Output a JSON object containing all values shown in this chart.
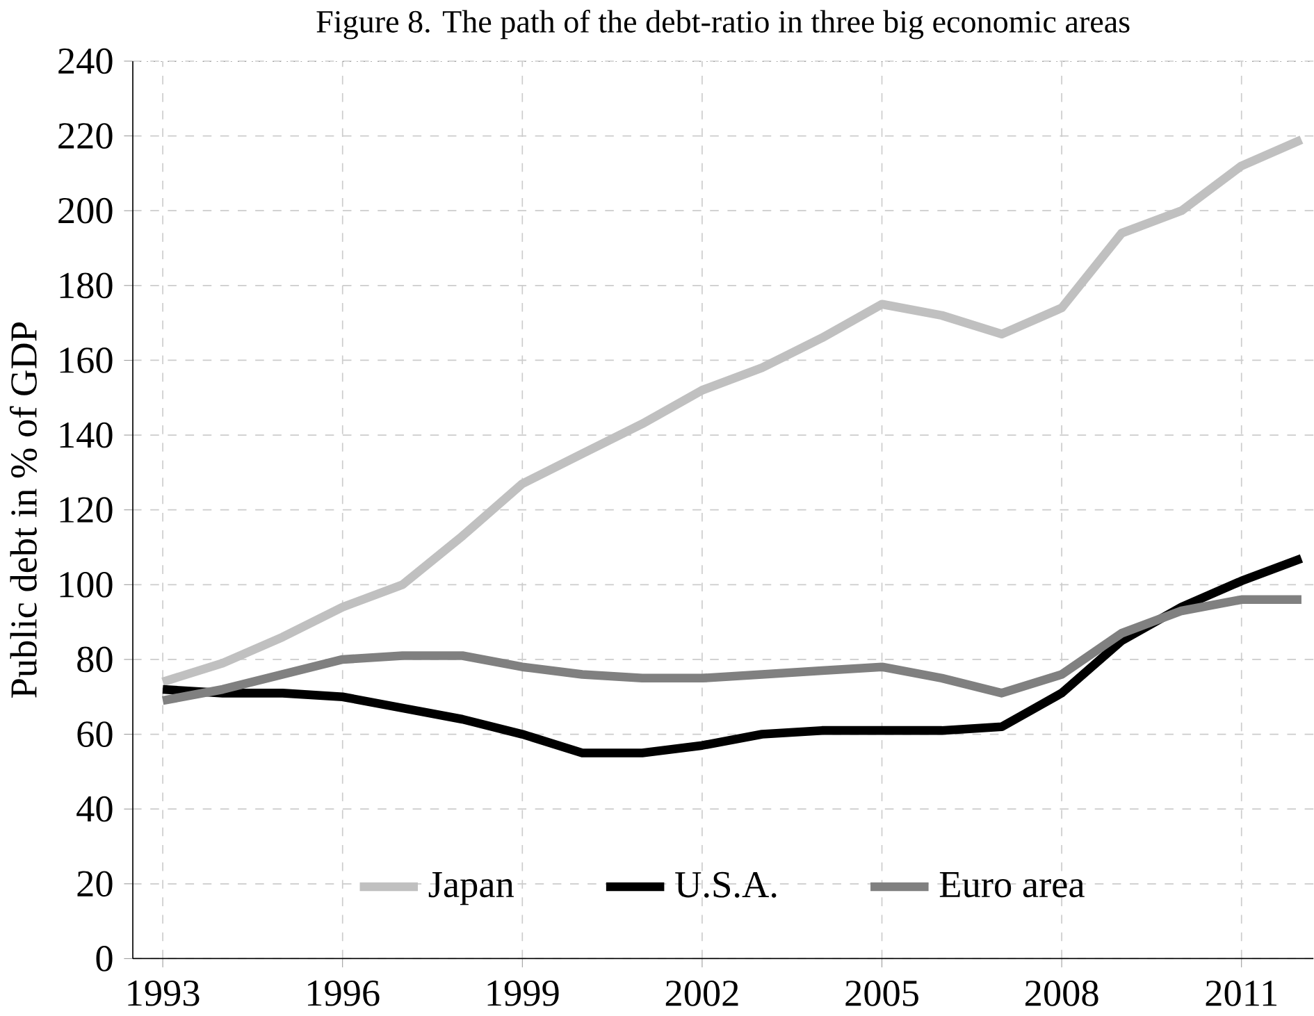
{
  "chart_data": {
    "type": "line",
    "title": "Figure 8. The path of the debt-ratio in three big economic areas",
    "ylabel": "Public debt in % of GDP",
    "x": [
      1993,
      1994,
      1995,
      1996,
      1997,
      1998,
      1999,
      2000,
      2001,
      2002,
      2003,
      2004,
      2005,
      2006,
      2007,
      2008,
      2009,
      2010,
      2011,
      2012
    ],
    "series": [
      {
        "name": "Japan",
        "color": "#c0c0c0",
        "values": [
          74,
          79,
          86,
          94,
          100,
          113,
          127,
          135,
          143,
          152,
          158,
          166,
          175,
          172,
          167,
          174,
          194,
          200,
          212,
          219
        ]
      },
      {
        "name": "U.S.A.",
        "color": "#000000",
        "values": [
          72,
          71,
          71,
          70,
          67,
          64,
          60,
          55,
          55,
          57,
          60,
          61,
          61,
          61,
          62,
          71,
          85,
          94,
          101,
          107
        ]
      },
      {
        "name": "Euro area",
        "color": "#808080",
        "values": [
          69,
          72,
          76,
          80,
          81,
          81,
          78,
          76,
          75,
          75,
          76,
          77,
          78,
          75,
          71,
          76,
          87,
          93,
          96,
          96
        ]
      }
    ],
    "xlim": [
      1992.5,
      2012.2
    ],
    "ylim": [
      0,
      240
    ],
    "xticks": [
      1993,
      1996,
      1999,
      2002,
      2005,
      2008,
      2011
    ],
    "yticks": [
      0,
      20,
      40,
      60,
      80,
      100,
      120,
      140,
      160,
      180,
      200,
      220,
      240
    ],
    "grid": true,
    "legend": "bottom",
    "marker": "none",
    "line_style": "solid"
  }
}
